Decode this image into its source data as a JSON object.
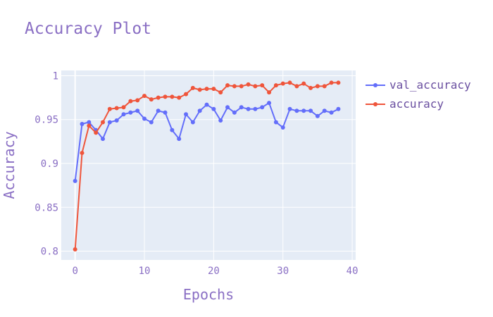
{
  "chart_data": {
    "type": "line",
    "title": "Accuracy Plot",
    "xlabel": "Epochs",
    "ylabel": "Accuracy",
    "xlim": [
      -2,
      40.5
    ],
    "ylim": [
      0.79,
      1.006
    ],
    "xticks": [
      0,
      10,
      20,
      30,
      40
    ],
    "yticks": [
      0.8,
      0.85,
      0.9,
      0.95,
      1
    ],
    "ytick_labels": [
      "0.8",
      "0.85",
      "0.9",
      "0.95",
      "1"
    ],
    "grid": true,
    "legend_position": "top-right",
    "x": [
      0,
      1,
      2,
      3,
      4,
      5,
      6,
      7,
      8,
      9,
      10,
      11,
      12,
      13,
      14,
      15,
      16,
      17,
      18,
      19,
      20,
      21,
      22,
      23,
      24,
      25,
      26,
      27,
      28,
      29,
      30,
      31,
      32,
      33,
      34,
      35,
      36,
      37,
      38
    ],
    "series": [
      {
        "name": "val_accuracy",
        "color": "#636efa",
        "values": [
          0.88,
          0.945,
          0.947,
          0.938,
          0.928,
          0.947,
          0.949,
          0.956,
          0.958,
          0.96,
          0.951,
          0.947,
          0.96,
          0.958,
          0.938,
          0.928,
          0.956,
          0.947,
          0.96,
          0.967,
          0.962,
          0.949,
          0.964,
          0.958,
          0.964,
          0.962,
          0.962,
          0.964,
          0.969,
          0.947,
          0.941,
          0.962,
          0.96,
          0.96,
          0.96,
          0.954,
          0.96,
          0.958,
          0.962
        ]
      },
      {
        "name": "accuracy",
        "color": "#ef553b",
        "values": [
          0.802,
          0.912,
          0.943,
          0.935,
          0.947,
          0.962,
          0.963,
          0.964,
          0.971,
          0.972,
          0.977,
          0.973,
          0.975,
          0.976,
          0.976,
          0.975,
          0.979,
          0.986,
          0.984,
          0.985,
          0.985,
          0.981,
          0.989,
          0.988,
          0.988,
          0.99,
          0.988,
          0.989,
          0.981,
          0.989,
          0.991,
          0.992,
          0.988,
          0.991,
          0.986,
          0.988,
          0.988,
          0.992,
          0.992
        ]
      }
    ]
  }
}
